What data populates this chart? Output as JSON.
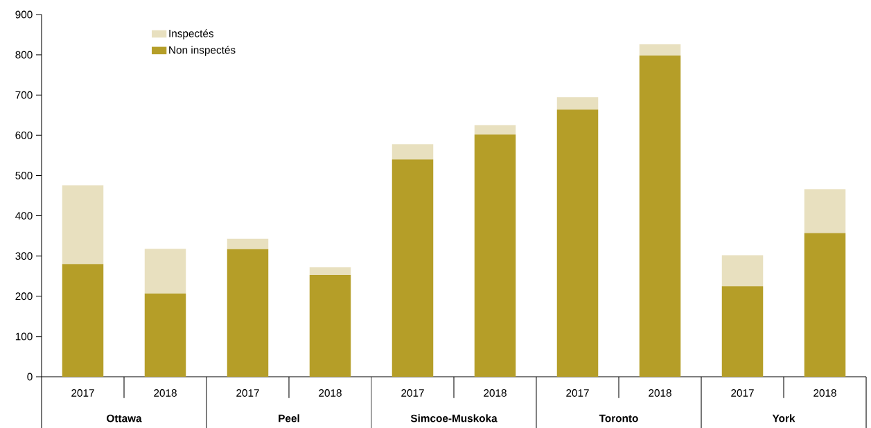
{
  "chart_data": {
    "type": "bar",
    "stacked": true,
    "categories": [
      "2017",
      "2018",
      "2017",
      "2018",
      "2017",
      "2018",
      "2017",
      "2018",
      "2017",
      "2018"
    ],
    "series": [
      {
        "name": "Non inspectés",
        "color": "#b59e28",
        "values": [
          280,
          207,
          317,
          253,
          540,
          602,
          664,
          798,
          225,
          357
        ]
      },
      {
        "name": "Inspectés",
        "color": "#e8e0bf",
        "values": [
          196,
          111,
          26,
          19,
          38,
          23,
          31,
          28,
          77,
          109
        ]
      }
    ],
    "annotations": [
      "Ottawa",
      "Peel",
      "Simcoe-Muskoka",
      "Toronto",
      "York"
    ],
    "ylim": [
      0,
      900
    ],
    "yticks": [
      0,
      100,
      200,
      300,
      400,
      500,
      600,
      700,
      800,
      900
    ],
    "legend": "top left"
  }
}
